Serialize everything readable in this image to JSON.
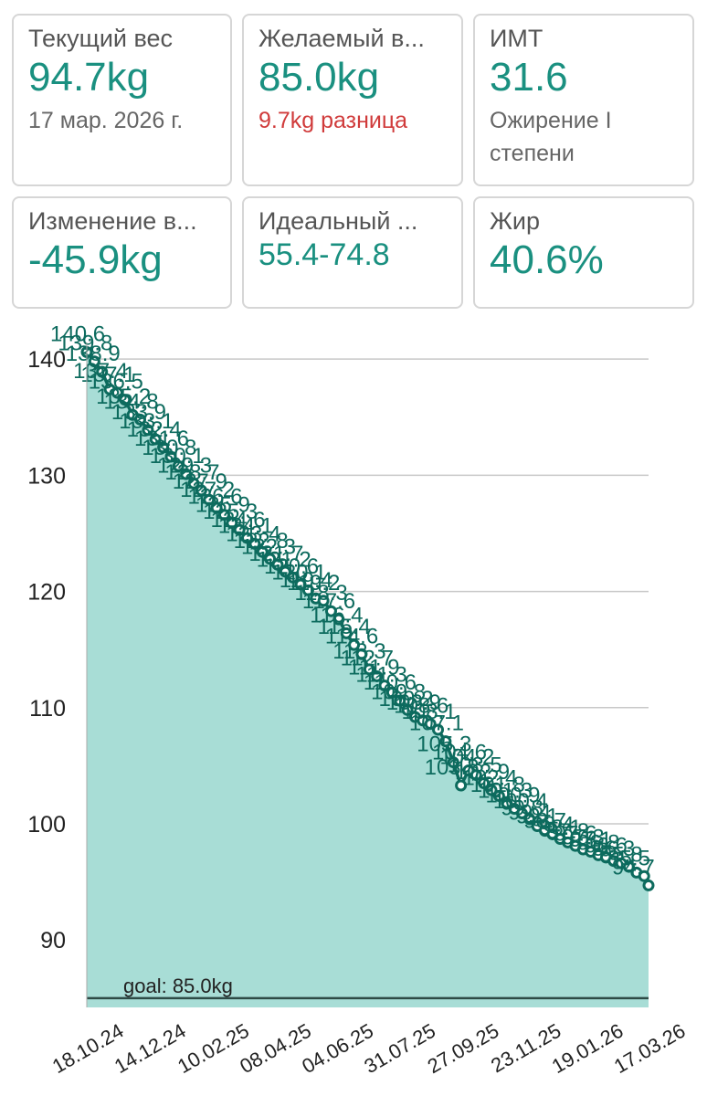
{
  "cards": [
    {
      "label": "Текущий вес",
      "value": "94.7kg",
      "note": "17 мар. 2026 г."
    },
    {
      "label": "Желаемый в...",
      "value": "85.0kg",
      "note": "9.7kg разница"
    },
    {
      "label": "ИМТ",
      "value": "31.6",
      "note": "Ожирение I степени"
    },
    {
      "label": "Изменение в...",
      "value": "-45.9kg"
    },
    {
      "label": "Идеальный ...",
      "value": "55.4-74.8"
    },
    {
      "label": "Жир",
      "value": "40.6%"
    }
  ],
  "chart_data": {
    "type": "area",
    "x": [
      "18.10.24",
      "25.10.24",
      "01.11.24",
      "08.11.24",
      "15.11.24",
      "22.11.24",
      "29.11.24",
      "06.12.24",
      "13.12.24",
      "20.12.24",
      "27.12.24",
      "03.01.25",
      "10.01.25",
      "17.01.25",
      "24.01.25",
      "31.01.25",
      "07.02.25",
      "14.02.25",
      "21.02.25",
      "28.02.25",
      "07.03.25",
      "14.03.25",
      "21.03.25",
      "28.03.25",
      "04.04.25",
      "11.04.25",
      "18.04.25",
      "25.04.25",
      "02.05.25",
      "09.05.25",
      "16.05.25",
      "23.05.25",
      "30.05.25",
      "06.06.25",
      "13.06.25",
      "20.06.25",
      "27.06.25",
      "04.07.25",
      "11.07.25",
      "18.07.25",
      "25.07.25",
      "01.08.25",
      "08.08.25",
      "15.08.25",
      "22.08.25",
      "29.08.25",
      "05.09.25",
      "12.09.25",
      "19.09.25",
      "26.09.25",
      "03.10.25",
      "10.10.25",
      "17.10.25",
      "24.10.25",
      "31.10.25",
      "07.11.25",
      "14.11.25",
      "21.11.25",
      "28.11.25",
      "05.12.25",
      "12.12.25",
      "19.12.25",
      "26.12.25",
      "02.01.26",
      "09.01.26",
      "16.01.26",
      "23.01.26",
      "30.01.26",
      "06.02.26",
      "13.02.26",
      "20.02.26",
      "27.02.26",
      "06.03.26",
      "13.03.26",
      "17.03.26"
    ],
    "values": [
      140.6,
      139.8,
      138.9,
      137.4,
      137.1,
      136.5,
      135.2,
      134.8,
      133.9,
      133.1,
      132.4,
      131.6,
      130.8,
      130.1,
      129.3,
      128.7,
      127.9,
      127.2,
      126.6,
      125.9,
      125.3,
      124.6,
      124.1,
      123.4,
      122.8,
      122.3,
      121.7,
      121.2,
      120.6,
      120.1,
      119.4,
      119.2,
      118.3,
      117.6,
      116.4,
      115.4,
      114.6,
      113.3,
      112.7,
      111.9,
      111.3,
      110.6,
      109.8,
      109.2,
      108.9,
      108.6,
      108.1,
      107.1,
      105.3,
      103.3,
      104.6,
      104.2,
      103.5,
      102.9,
      102.4,
      101.8,
      101.3,
      100.9,
      100.4,
      99.8,
      99.4,
      99.1,
      98.7,
      98.4,
      98.1,
      97.8,
      97.6,
      97.3,
      97.1,
      96.8,
      96.6,
      96.3,
      95.8,
      95.5,
      94.7
    ],
    "color": "#0d6b5e",
    "fill": "#a8ddd6",
    "xlim": [
      "18.10.24",
      "17.03.26"
    ],
    "xticks": [
      "18.10.24",
      "14.12.24",
      "10.02.25",
      "08.04.25",
      "04.06.25",
      "31.07.25",
      "27.09.25",
      "23.11.25",
      "19.01.26",
      "17.03.26"
    ],
    "ylim": [
      84.2,
      143
    ],
    "yticks": [
      90,
      100,
      110,
      120,
      130,
      140
    ],
    "grid": true,
    "goal": 85,
    "goal_label": "goal: 85.0kg"
  }
}
